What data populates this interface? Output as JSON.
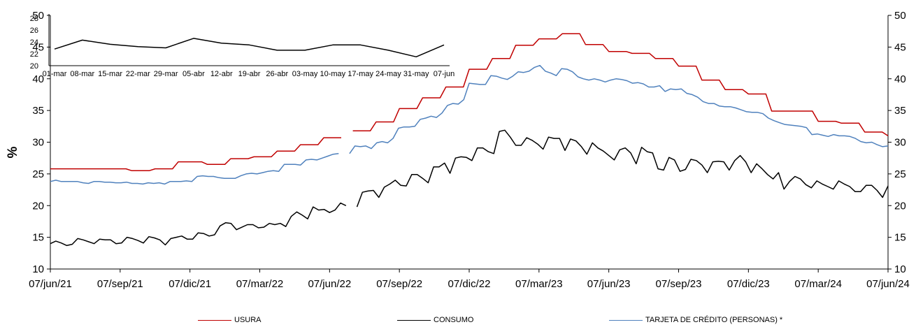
{
  "chart_data": [
    {
      "type": "line",
      "ylabel": "%",
      "ylim": [
        10,
        50
      ],
      "yticks": [
        10,
        15,
        20,
        25,
        30,
        35,
        40,
        45,
        50
      ],
      "x_ticks": [
        "07/jun/21",
        "07/sep/21",
        "07/dic/21",
        "07/mar/22",
        "07/jun/22",
        "07/sep/22",
        "07/dic/22",
        "07/mar/23",
        "07/jun/23",
        "07/sep/23",
        "07/dic/23",
        "07/mar/24",
        "07/jun/24"
      ],
      "secondary_axis": true,
      "grid": false,
      "legend": "bottom",
      "series": [
        {
          "name": "USURA",
          "color": "#C00000",
          "values": [
            25.8,
            25.8,
            25.8,
            25.8,
            25.8,
            25.8,
            25.8,
            25.8,
            25.8,
            25.8,
            25.8,
            25.8,
            25.8,
            25.8,
            25.5,
            25.5,
            25.5,
            25.5,
            25.8,
            25.8,
            25.8,
            25.8,
            26.9,
            26.9,
            26.9,
            26.9,
            26.9,
            26.5,
            26.5,
            26.5,
            26.5,
            27.4,
            27.4,
            27.4,
            27.4,
            27.7,
            27.7,
            27.7,
            27.7,
            28.6,
            28.6,
            28.6,
            28.6,
            29.6,
            29.6,
            29.6,
            29.6,
            30.7,
            30.7,
            30.7,
            30.7,
            null,
            31.8,
            31.8,
            31.8,
            31.8,
            33.2,
            33.2,
            33.2,
            33.2,
            35.3,
            35.3,
            35.3,
            35.3,
            37.0,
            37.0,
            37.0,
            37.0,
            38.7,
            38.7,
            38.7,
            38.7,
            41.5,
            41.5,
            41.5,
            41.5,
            43.2,
            43.2,
            43.2,
            43.2,
            45.3,
            45.3,
            45.3,
            45.3,
            46.3,
            46.3,
            46.3,
            46.3,
            47.1,
            47.1,
            47.1,
            47.1,
            45.4,
            45.4,
            45.4,
            45.4,
            44.3,
            44.3,
            44.3,
            44.3,
            44.0,
            44.0,
            44.0,
            44.0,
            43.2,
            43.2,
            43.2,
            43.2,
            42.0,
            42.0,
            42.0,
            42.0,
            39.8,
            39.8,
            39.8,
            39.8,
            38.3,
            38.3,
            38.3,
            38.3,
            37.6,
            37.6,
            37.6,
            37.6,
            34.9,
            34.9,
            34.9,
            34.9,
            34.9,
            34.9,
            34.9,
            34.9,
            33.3,
            33.3,
            33.3,
            33.3,
            33.0,
            33.0,
            33.0,
            33.0,
            31.6,
            31.6,
            31.6,
            31.6,
            31.0
          ]
        },
        {
          "name": "CONSUMO",
          "color": "#000000",
          "values": [
            14.0,
            14.4,
            14.1,
            13.7,
            13.9,
            14.8,
            14.6,
            14.3,
            14.0,
            14.7,
            14.6,
            14.6,
            14.0,
            14.1,
            15.0,
            14.8,
            14.5,
            14.1,
            15.1,
            14.9,
            14.6,
            13.8,
            14.8,
            15.0,
            15.2,
            14.7,
            14.7,
            15.7,
            15.6,
            15.2,
            15.4,
            16.8,
            17.3,
            17.2,
            16.2,
            16.6,
            17.0,
            17.0,
            16.5,
            16.6,
            17.2,
            17.0,
            17.2,
            16.7,
            18.3,
            19.0,
            18.5,
            17.9,
            19.8,
            19.3,
            19.4,
            18.9,
            19.3,
            20.4,
            20.0,
            null,
            19.8,
            22.1,
            22.3,
            22.4,
            21.3,
            22.9,
            23.4,
            24.0,
            23.2,
            23.1,
            24.9,
            24.9,
            24.3,
            23.6,
            26.1,
            26.1,
            26.7,
            25.1,
            27.5,
            27.7,
            27.6,
            27.1,
            29.1,
            29.1,
            28.5,
            28.2,
            31.7,
            31.9,
            30.8,
            29.5,
            29.5,
            30.7,
            30.3,
            29.7,
            28.9,
            30.8,
            30.6,
            30.6,
            28.7,
            30.5,
            30.2,
            29.3,
            28.1,
            29.9,
            29.1,
            28.6,
            27.9,
            27.2,
            28.8,
            29.1,
            28.3,
            26.6,
            29.2,
            28.5,
            28.3,
            25.8,
            25.6,
            27.6,
            27.2,
            25.4,
            25.7,
            27.3,
            27.1,
            26.4,
            25.2,
            26.9,
            27.0,
            26.9,
            25.6,
            27.1,
            27.9,
            26.9,
            25.2,
            26.6,
            25.8,
            24.9,
            24.2,
            25.2,
            22.6,
            23.8,
            24.6,
            24.2,
            23.3,
            22.8,
            23.9,
            23.4,
            23.0,
            22.6,
            23.9,
            23.4,
            23.0,
            22.2,
            22.2,
            23.2,
            23.2,
            22.4,
            21.3,
            23.1
          ]
        },
        {
          "name": "TARJETA DE CRÉDITO (PERSONAS) *",
          "color": "#4F81BD",
          "values": [
            23.8,
            24.0,
            23.8,
            23.8,
            23.8,
            23.8,
            23.6,
            23.5,
            23.8,
            23.8,
            23.7,
            23.7,
            23.6,
            23.6,
            23.7,
            23.5,
            23.5,
            23.4,
            23.6,
            23.5,
            23.6,
            23.4,
            23.8,
            23.8,
            23.8,
            23.9,
            23.8,
            24.6,
            24.7,
            24.6,
            24.6,
            24.4,
            24.3,
            24.3,
            24.3,
            24.7,
            25.0,
            25.1,
            25.0,
            25.2,
            25.4,
            25.5,
            25.4,
            26.5,
            26.5,
            26.5,
            26.4,
            27.2,
            27.3,
            27.2,
            27.5,
            27.8,
            28.1,
            28.2,
            null,
            28.2,
            29.4,
            29.3,
            29.4,
            29.0,
            29.9,
            30.1,
            29.9,
            30.6,
            32.2,
            32.4,
            32.4,
            32.5,
            33.6,
            33.8,
            34.1,
            33.9,
            34.6,
            35.8,
            36.1,
            36.0,
            36.7,
            39.3,
            39.2,
            39.1,
            39.1,
            40.5,
            40.4,
            40.1,
            39.9,
            40.4,
            41.1,
            41.0,
            41.2,
            41.8,
            42.1,
            41.2,
            40.9,
            40.5,
            41.6,
            41.5,
            41.1,
            40.3,
            40.0,
            39.8,
            40.0,
            39.8,
            39.5,
            39.8,
            40.0,
            39.9,
            39.7,
            39.3,
            39.4,
            39.2,
            38.7,
            38.7,
            38.9,
            38.0,
            38.4,
            38.3,
            38.4,
            37.7,
            37.5,
            37.1,
            36.4,
            36.1,
            36.1,
            35.7,
            35.6,
            35.6,
            35.4,
            35.1,
            34.8,
            34.7,
            34.7,
            34.5,
            33.8,
            33.4,
            33.1,
            32.8,
            32.7,
            32.6,
            32.5,
            32.3,
            31.2,
            31.3,
            31.1,
            30.9,
            31.2,
            31.0,
            31.0,
            30.9,
            30.6,
            30.1,
            29.9,
            30.0,
            29.6,
            29.3,
            29.4
          ]
        }
      ]
    },
    {
      "type": "line",
      "ylim": [
        20,
        28
      ],
      "yticks": [
        20,
        22,
        24,
        26,
        28
      ],
      "x_ticks": [
        "01-mar",
        "08-mar",
        "15-mar",
        "22-mar",
        "29-mar",
        "05-abr",
        "12-abr",
        "19-abr",
        "26-abr",
        "03-may",
        "10-may",
        "17-may",
        "24-may",
        "31-may",
        "07-jun"
      ],
      "series": [
        {
          "color": "#000000",
          "values": [
            22.8,
            24.3,
            23.6,
            23.2,
            23.0,
            24.6,
            23.8,
            23.5,
            22.6,
            22.6,
            23.5,
            23.5,
            22.6,
            21.5,
            23.5
          ]
        }
      ]
    }
  ]
}
